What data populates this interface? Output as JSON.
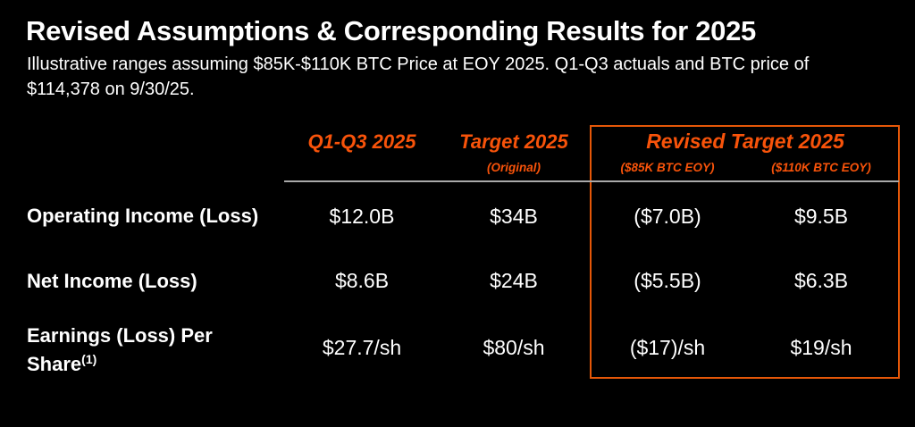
{
  "slide": {
    "title": "Revised Assumptions & Corresponding Results for 2025",
    "subtitle_line1": "Illustrative ranges assuming $85K-$110K BTC Price at EOY 2025. Q1-Q3 actuals and BTC price of",
    "subtitle_line2": "$114,378 on 9/30/25."
  },
  "colors": {
    "background": "#000000",
    "text_white": "#ffffff",
    "accent_orange": "#f8530a",
    "box_border_orange": "#e55708",
    "divider_gray": "#a9a9a9"
  },
  "table": {
    "column_headers": {
      "col1_label": "Q1-Q3 2025",
      "col2_label": "Target 2025",
      "col2_sublabel": "(Original)",
      "revised_group_label": "Revised Target 2025",
      "col3_sublabel": "($85K BTC EOY)",
      "col4_sublabel": "($110K BTC EOY)"
    },
    "rows": [
      {
        "label": "Operating Income (Loss)",
        "values": [
          "$12.0B",
          "$34B",
          "($7.0B)",
          "$9.5B"
        ]
      },
      {
        "label": "Net Income (Loss)",
        "values": [
          "$8.6B",
          "$24B",
          "($5.5B)",
          "$6.3B"
        ]
      },
      {
        "label_line1": "Earnings (Loss) Per",
        "label_line2": "Share",
        "label_superscript": "(1)",
        "values": [
          "$27.7/sh",
          "$80/sh",
          "($17)/sh",
          "$19/sh"
        ]
      }
    ]
  }
}
